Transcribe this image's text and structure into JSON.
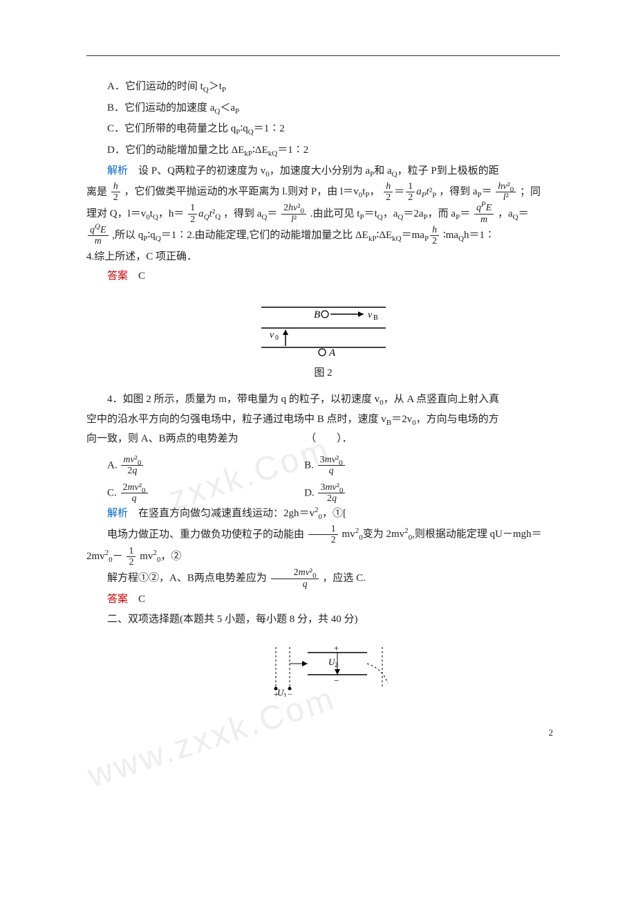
{
  "q3": {
    "optA": "A．它们运动的时间 t$_Q$＞t$_P$",
    "optB": "B．它们运动的加速度 a$_Q$＜a$_P$",
    "optC": "C．它们所带的电荷量之比 q$_P$∶q$_Q$＝1∶2",
    "optD": "D．它们的动能增加量之比 ΔE$_{kP}$∶ΔE$_{kQ}$＝1∶2",
    "analysis_label": "解析",
    "analysis_1a": "　设 P、Q两粒子的初速度为 v$_0$，加速度大小分别为 a$_P$和 a$_Q$，粒子 P到上极板的距",
    "analysis_1b": "离是",
    "analysis_1c": "，它们做类平抛运动的水平距离为 l.则对 P，由 l＝v$_0$t$_P$，",
    "analysis_1d": "，得到 a$_P$＝",
    "analysis_1e": "；同",
    "analysis_2a": "理对 Q，l＝v$_0$t$_Q$，h＝",
    "analysis_2b": "，得到 a$_Q$＝",
    "analysis_2c": ".由此可见 t$_P$＝t$_Q$，a$_Q$＝2a$_P$，而 a$_P$＝",
    "analysis_2d": "，a$_Q$＝",
    "analysis_3a": ",所以 q$_P$∶q$_Q$＝1∶2.由动能定理,它们的动能增加量之比 ΔE$_{kP}$∶ΔE$_{kQ}$＝ma$_P$",
    "analysis_3b": "∶ma$_Q$h＝1∶",
    "analysis_4": "4.综上所述，C 项正确．",
    "answer_label": "答案",
    "answer": "　C"
  },
  "fig2": {
    "caption": "图 2",
    "labels": {
      "B": "B",
      "vB": "v$_B$",
      "v0": "v$_0$",
      "A": "A"
    }
  },
  "q4": {
    "stem1": "4．如图 2 所示，质量为 m，带电量为 q 的粒子，以初速度 v$_0$，从 A 点竖直向上射入真",
    "stem2": "空中的沿水平方向的匀强电场中，粒子通过电场中 B 点时，速度 v$_B$＝2v$_0$，方向与电场的方",
    "stem3": "向一致，则 A、B两点的电势差为",
    "paren": "（　　）．",
    "optA_pre": "A.",
    "optB_pre": "B.",
    "optC_pre": "C.",
    "optD_pre": "D.",
    "analysis_label": "解析",
    "analysis1": "　在竖直方向做匀减速直线运动：2gh＝v²$_0$，①[",
    "analysis2a": "电场力做正功、重力做负功使粒子的动能由",
    "analysis2b": "mv²$_0$变为 2mv²$_0$,则根据动能定理 qU－mgh＝",
    "analysis3a": "2mv²$_0$－",
    "analysis3b": "mv²$_0$，②",
    "analysis4a": "解方程①②，A、B两点电势差应为",
    "analysis4b": "，应选 C.",
    "answer_label": "答案",
    "answer": "　C"
  },
  "section2": "二、双项选择题(本题共 5 小题，每小题 8 分，共 40 分)",
  "fig3": {
    "U1": "U$_1$",
    "U2": "U$_2$"
  },
  "pagenum": "2"
}
